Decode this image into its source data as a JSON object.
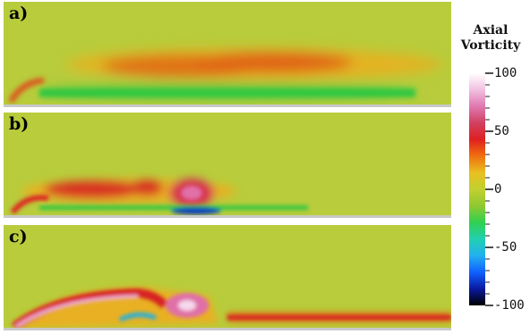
{
  "panels": [
    {
      "label": "a)"
    },
    {
      "label": "b)"
    },
    {
      "label": "c)"
    }
  ],
  "colorbar": {
    "title_line1": "Axial",
    "title_line2": "Vorticity",
    "min": -100,
    "max": 100,
    "ticks": [
      {
        "value": 100,
        "label": "100"
      },
      {
        "value": 50,
        "label": "50"
      },
      {
        "value": 0,
        "label": "0"
      },
      {
        "value": -50,
        "label": "-50"
      },
      {
        "value": -100,
        "label": "-100"
      }
    ],
    "colors": [
      "#000000",
      "#0a1aa0",
      "#1060ff",
      "#22b0f0",
      "#22d0b0",
      "#30d050",
      "#90c830",
      "#c0d030",
      "#e8c020",
      "#f07010",
      "#e02020",
      "#d04060",
      "#e078b0",
      "#f0c0e0",
      "#ffffff"
    ]
  },
  "background_color": "#b8cc3c"
}
